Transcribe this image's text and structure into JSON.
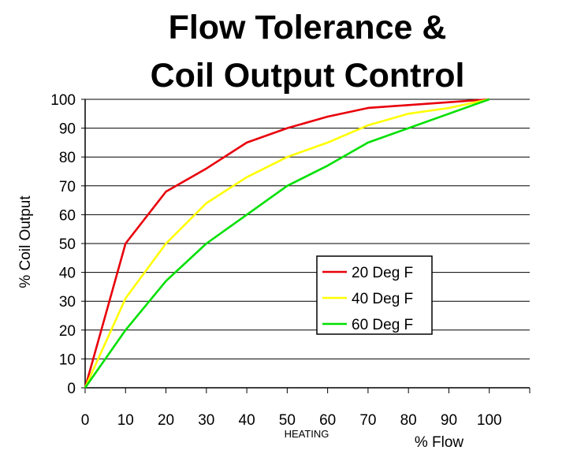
{
  "chart_data": {
    "type": "line",
    "title": [
      "Flow Tolerance &",
      "Coil Output Control"
    ],
    "xlabel": "% Flow",
    "xsublabel": "HEATING",
    "ylabel": "% Coil Output",
    "xlim": [
      0,
      110
    ],
    "ylim": [
      0,
      100
    ],
    "x_ticks": [
      "0",
      "10",
      "20",
      "30",
      "40",
      "50",
      "60",
      "70",
      "80",
      "90",
      "100"
    ],
    "y_ticks": [
      "0",
      "10",
      "20",
      "30",
      "40",
      "50",
      "60",
      "70",
      "80",
      "90",
      "100"
    ],
    "grid": "horizontal",
    "legend_position": "right",
    "series": [
      {
        "name": "20 Deg F",
        "color": "#e8000b",
        "x": [
          0,
          10,
          20,
          30,
          40,
          50,
          60,
          70,
          80,
          90,
          100
        ],
        "values": [
          0,
          50,
          68,
          76,
          85,
          90,
          94,
          97,
          98,
          99,
          100
        ]
      },
      {
        "name": "40 Deg F",
        "color": "#ffff00",
        "x": [
          0,
          10,
          20,
          30,
          40,
          50,
          60,
          70,
          80,
          90,
          100
        ],
        "values": [
          0,
          31,
          50,
          64,
          73,
          80,
          85,
          91,
          95,
          97,
          100
        ]
      },
      {
        "name": "60 Deg F",
        "color": "#00e000",
        "x": [
          0,
          10,
          20,
          30,
          40,
          50,
          60,
          70,
          80,
          90,
          100
        ],
        "values": [
          0,
          20,
          37,
          50,
          60,
          70,
          77,
          85,
          90,
          95,
          100
        ]
      }
    ]
  }
}
